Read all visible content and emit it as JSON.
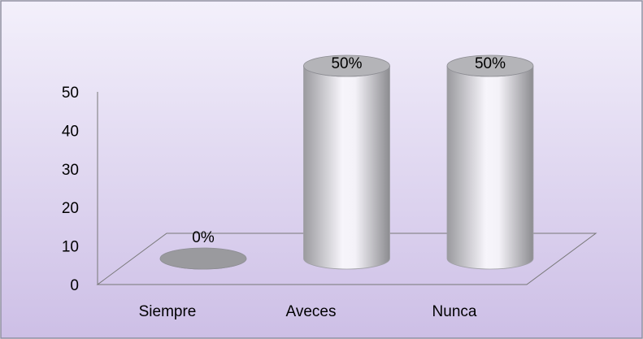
{
  "chart_data": {
    "type": "bar",
    "categories": [
      "Siempre",
      "Aveces",
      "Nunca"
    ],
    "values": [
      0,
      50,
      50
    ],
    "value_labels": [
      "0%",
      "50%",
      "50%"
    ],
    "color": "#c8c8cc",
    "ylim": [
      0,
      50
    ],
    "yticks": [
      0,
      10,
      20,
      30,
      40,
      50
    ],
    "grid": false
  }
}
